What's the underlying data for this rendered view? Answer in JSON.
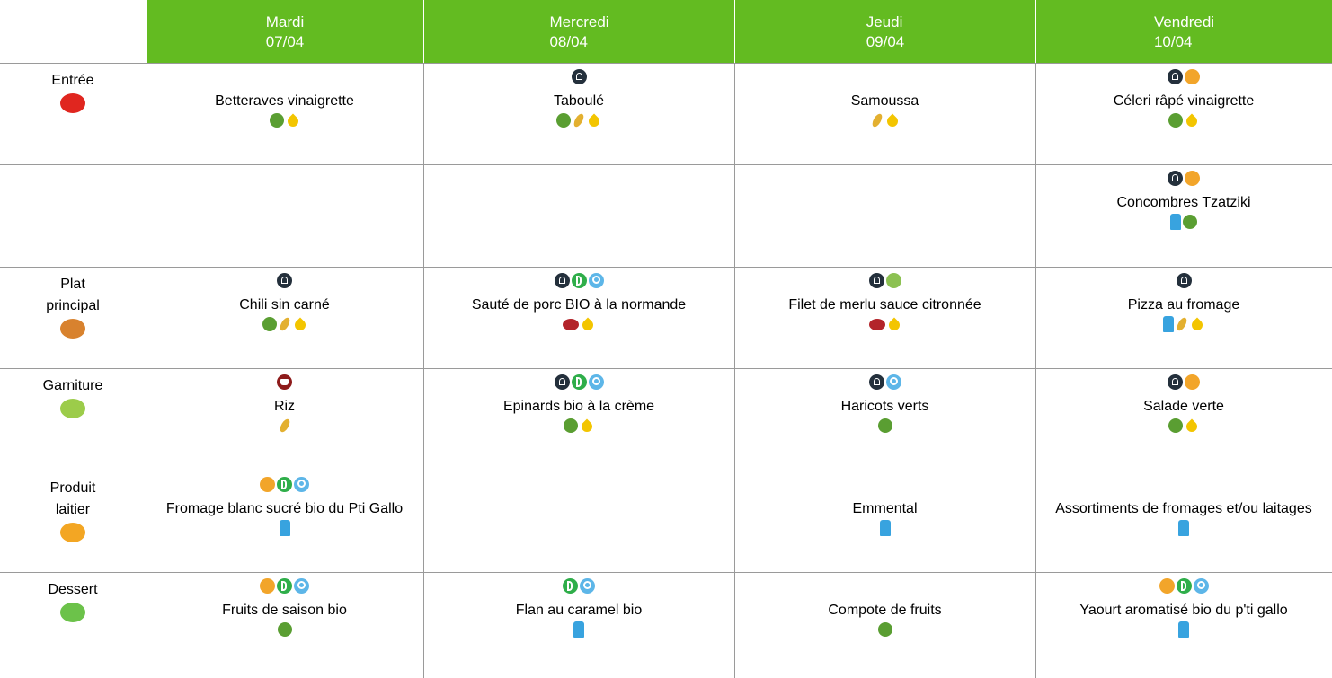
{
  "header": {
    "days": [
      {
        "day": "Mardi",
        "date": "07/04"
      },
      {
        "day": "Mercredi",
        "date": "08/04"
      },
      {
        "day": "Jeudi",
        "date": "09/04"
      },
      {
        "day": "Vendredi",
        "date": "10/04"
      }
    ]
  },
  "rows": [
    {
      "label": "Entrée",
      "cells": [
        "Betteraves vinaigrette",
        "Taboulé",
        "Samoussa",
        "Céleri râpé vinaigrette"
      ]
    },
    {
      "cells": [
        null,
        null,
        null,
        "Concombres Tzatziki"
      ]
    },
    {
      "label": "Plat principal",
      "cells": [
        "Chili sin carné",
        "Sauté de porc BIO à la normande",
        "Filet de merlu sauce citronnée",
        "Pizza au fromage"
      ]
    },
    {
      "label": "Garniture",
      "cells": [
        "Riz",
        "Epinards bio à la crème",
        "Haricots verts",
        "Salade verte"
      ]
    },
    {
      "label": "Produit laitier",
      "cells": [
        "Fromage blanc sucré bio du Pti Gallo",
        null,
        "Emmental",
        "Assortiments de fromages et/ou laitages"
      ]
    },
    {
      "label": "Dessert",
      "cells": [
        "Fruits de saison bio",
        "Flan au caramel bio",
        "Compote de fruits",
        "Yaourt aromatisé bio du p'ti gallo"
      ]
    }
  ]
}
